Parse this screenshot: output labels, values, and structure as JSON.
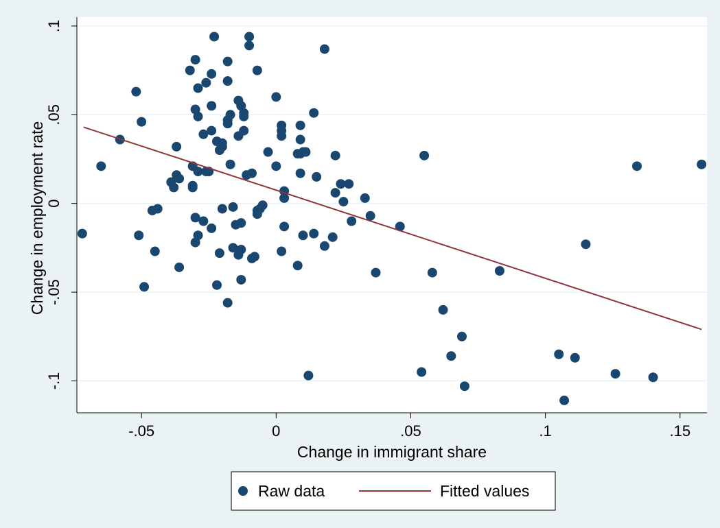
{
  "chart_data": {
    "type": "scatter",
    "xlabel": "Change in immigrant share",
    "ylabel": "Change in employment rate",
    "xlim": [
      -0.074,
      0.16
    ],
    "ylim": [
      -0.118,
      0.105
    ],
    "xticks": [
      {
        "value": -0.05,
        "label": "-.05"
      },
      {
        "value": 0,
        "label": "0"
      },
      {
        "value": 0.05,
        "label": ".05"
      },
      {
        "value": 0.1,
        "label": ".1"
      },
      {
        "value": 0.15,
        "label": ".15"
      }
    ],
    "yticks": [
      {
        "value": -0.1,
        "label": "-.1"
      },
      {
        "value": -0.05,
        "label": "-.05"
      },
      {
        "value": 0,
        "label": "0"
      },
      {
        "value": 0.05,
        "label": ".05"
      },
      {
        "value": 0.1,
        "label": ".1"
      }
    ],
    "grid": "horizontal",
    "legend_position": "bottom",
    "colors": {
      "outer_bg": "#eaf2f3",
      "plot_bg": "#ffffff",
      "points": "#1a476f",
      "fit_line": "#90353b",
      "grid": "#eaf2f3"
    },
    "series": [
      {
        "name": "Raw data",
        "kind": "scatter",
        "points": [
          [
            -0.072,
            -0.017
          ],
          [
            -0.065,
            0.021
          ],
          [
            -0.058,
            0.036
          ],
          [
            -0.052,
            0.063
          ],
          [
            -0.051,
            -0.018
          ],
          [
            -0.05,
            0.046
          ],
          [
            -0.049,
            -0.047
          ],
          [
            -0.046,
            -0.004
          ],
          [
            -0.045,
            -0.027
          ],
          [
            -0.044,
            -0.003
          ],
          [
            -0.039,
            0.012
          ],
          [
            -0.038,
            0.009
          ],
          [
            -0.037,
            0.032
          ],
          [
            -0.037,
            0.016
          ],
          [
            -0.036,
            0.014
          ],
          [
            -0.036,
            -0.036
          ],
          [
            -0.032,
            0.075
          ],
          [
            -0.031,
            0.021
          ],
          [
            -0.031,
            0.009
          ],
          [
            -0.031,
            0.01
          ],
          [
            -0.03,
            0.081
          ],
          [
            -0.03,
            0.053
          ],
          [
            -0.03,
            -0.022
          ],
          [
            -0.03,
            -0.008
          ],
          [
            -0.029,
            0.065
          ],
          [
            -0.029,
            0.049
          ],
          [
            -0.029,
            0.018
          ],
          [
            -0.029,
            -0.018
          ],
          [
            -0.027,
            0.039
          ],
          [
            -0.027,
            -0.01
          ],
          [
            -0.026,
            0.068
          ],
          [
            -0.026,
            0.018
          ],
          [
            -0.025,
            0.018
          ],
          [
            -0.024,
            0.073
          ],
          [
            -0.024,
            0.055
          ],
          [
            -0.024,
            0.041
          ],
          [
            -0.024,
            -0.014
          ],
          [
            -0.023,
            0.094
          ],
          [
            -0.022,
            0.035
          ],
          [
            -0.022,
            -0.046
          ],
          [
            -0.021,
            0.03
          ],
          [
            -0.021,
            -0.028
          ],
          [
            -0.02,
            0.034
          ],
          [
            -0.02,
            0.032
          ],
          [
            -0.02,
            -0.003
          ],
          [
            -0.018,
            0.08
          ],
          [
            -0.018,
            0.069
          ],
          [
            -0.018,
            0.047
          ],
          [
            -0.018,
            0.045
          ],
          [
            -0.018,
            -0.056
          ],
          [
            -0.017,
            0.05
          ],
          [
            -0.017,
            0.022
          ],
          [
            -0.016,
            -0.002
          ],
          [
            -0.016,
            -0.025
          ],
          [
            -0.015,
            -0.012
          ],
          [
            -0.014,
            0.058
          ],
          [
            -0.014,
            0.038
          ],
          [
            -0.014,
            -0.029
          ],
          [
            -0.013,
            0.055
          ],
          [
            -0.013,
            -0.011
          ],
          [
            -0.013,
            -0.026
          ],
          [
            -0.013,
            -0.043
          ],
          [
            -0.012,
            0.051
          ],
          [
            -0.012,
            0.049
          ],
          [
            -0.012,
            0.041
          ],
          [
            -0.011,
            0.016
          ],
          [
            -0.01,
            0.094
          ],
          [
            -0.01,
            0.089
          ],
          [
            -0.009,
            0.017
          ],
          [
            -0.009,
            -0.031
          ],
          [
            -0.008,
            -0.03
          ],
          [
            -0.007,
            0.075
          ],
          [
            -0.007,
            -0.004
          ],
          [
            -0.007,
            -0.006
          ],
          [
            -0.006,
            -0.003
          ],
          [
            -0.005,
            -0.001
          ],
          [
            -0.003,
            0.029
          ],
          [
            0.0,
            0.06
          ],
          [
            0.0,
            0.021
          ],
          [
            0.002,
            0.044
          ],
          [
            0.002,
            0.038
          ],
          [
            0.002,
            0.041
          ],
          [
            0.002,
            -0.027
          ],
          [
            0.003,
            0.007
          ],
          [
            0.003,
            0.003
          ],
          [
            0.003,
            -0.013
          ],
          [
            0.008,
            -0.035
          ],
          [
            0.008,
            0.028
          ],
          [
            0.009,
            0.028
          ],
          [
            0.009,
            0.017
          ],
          [
            0.009,
            0.036
          ],
          [
            0.009,
            0.044
          ],
          [
            0.01,
            0.029
          ],
          [
            0.011,
            0.029
          ],
          [
            0.01,
            -0.018
          ],
          [
            0.012,
            -0.097
          ],
          [
            0.014,
            -0.017
          ],
          [
            0.014,
            0.051
          ],
          [
            0.015,
            0.015
          ],
          [
            0.018,
            0.087
          ],
          [
            0.018,
            -0.024
          ],
          [
            0.021,
            -0.019
          ],
          [
            0.022,
            0.027
          ],
          [
            0.022,
            0.006
          ],
          [
            0.024,
            0.011
          ],
          [
            0.025,
            0.001
          ],
          [
            0.027,
            0.011
          ],
          [
            0.028,
            -0.01
          ],
          [
            0.033,
            0.003
          ],
          [
            0.035,
            -0.007
          ],
          [
            0.037,
            -0.039
          ],
          [
            0.046,
            -0.013
          ],
          [
            0.054,
            -0.095
          ],
          [
            0.055,
            0.027
          ],
          [
            0.058,
            -0.039
          ],
          [
            0.062,
            -0.06
          ],
          [
            0.065,
            -0.086
          ],
          [
            0.069,
            -0.075
          ],
          [
            0.07,
            -0.103
          ],
          [
            0.083,
            -0.038
          ],
          [
            0.105,
            -0.085
          ],
          [
            0.107,
            -0.111
          ],
          [
            0.111,
            -0.087
          ],
          [
            0.115,
            -0.023
          ],
          [
            0.126,
            -0.096
          ],
          [
            0.134,
            0.021
          ],
          [
            0.14,
            -0.098
          ],
          [
            0.158,
            0.022
          ]
        ]
      },
      {
        "name": "Fitted values",
        "kind": "line",
        "points": [
          [
            -0.0715,
            0.043
          ],
          [
            0.158,
            -0.071
          ]
        ]
      }
    ]
  }
}
